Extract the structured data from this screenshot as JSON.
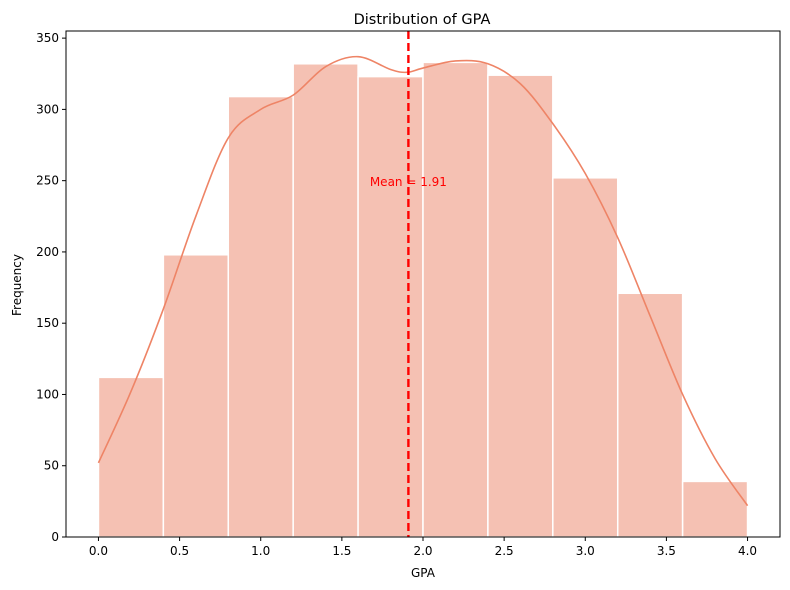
{
  "chart_data": {
    "type": "bar",
    "title": "Distribution of GPA",
    "xlabel": "GPA",
    "ylabel": "Frequency",
    "xlim": [
      -0.2,
      4.2
    ],
    "ylim": [
      0,
      355
    ],
    "xticks": [
      0.0,
      0.5,
      1.0,
      1.5,
      2.0,
      2.5,
      3.0,
      3.5,
      4.0
    ],
    "xtick_labels": [
      "0.0",
      "0.5",
      "1.0",
      "1.5",
      "2.0",
      "2.5",
      "3.0",
      "3.5",
      "4.0"
    ],
    "yticks": [
      0,
      50,
      100,
      150,
      200,
      250,
      300,
      350
    ],
    "ytick_labels": [
      "0",
      "50",
      "100",
      "150",
      "200",
      "250",
      "300",
      "350"
    ],
    "bins": [
      {
        "x0": 0.0,
        "x1": 0.4,
        "count": 112
      },
      {
        "x0": 0.4,
        "x1": 0.8,
        "count": 198
      },
      {
        "x0": 0.8,
        "x1": 1.2,
        "count": 309
      },
      {
        "x0": 1.2,
        "x1": 1.6,
        "count": 332
      },
      {
        "x0": 1.6,
        "x1": 2.0,
        "count": 323
      },
      {
        "x0": 2.0,
        "x1": 2.4,
        "count": 333
      },
      {
        "x0": 2.4,
        "x1": 2.8,
        "count": 324
      },
      {
        "x0": 2.8,
        "x1": 3.2,
        "count": 252
      },
      {
        "x0": 3.2,
        "x1": 3.6,
        "count": 171
      },
      {
        "x0": 3.6,
        "x1": 4.0,
        "count": 39
      }
    ],
    "kde_curve": {
      "x": [
        0.0,
        0.2,
        0.4,
        0.6,
        0.8,
        1.0,
        1.2,
        1.4,
        1.6,
        1.8,
        1.9,
        2.0,
        2.2,
        2.4,
        2.6,
        2.8,
        3.0,
        3.2,
        3.4,
        3.6,
        3.8,
        4.0
      ],
      "y": [
        52,
        102,
        160,
        225,
        280,
        300,
        310,
        330,
        337,
        328,
        326,
        329,
        334,
        332,
        318,
        290,
        255,
        210,
        155,
        100,
        55,
        22
      ]
    },
    "mean_line": {
      "x": 1.91,
      "label": "Mean = 1.91",
      "label_y": 249
    },
    "colors": {
      "bar_fill": "#f5c1b3",
      "bar_edge": "#ffffff",
      "kde_line": "#ee8466",
      "mean_line": "#ff0000",
      "annotation": "#ff0000"
    },
    "grid": false,
    "legend": "none"
  }
}
